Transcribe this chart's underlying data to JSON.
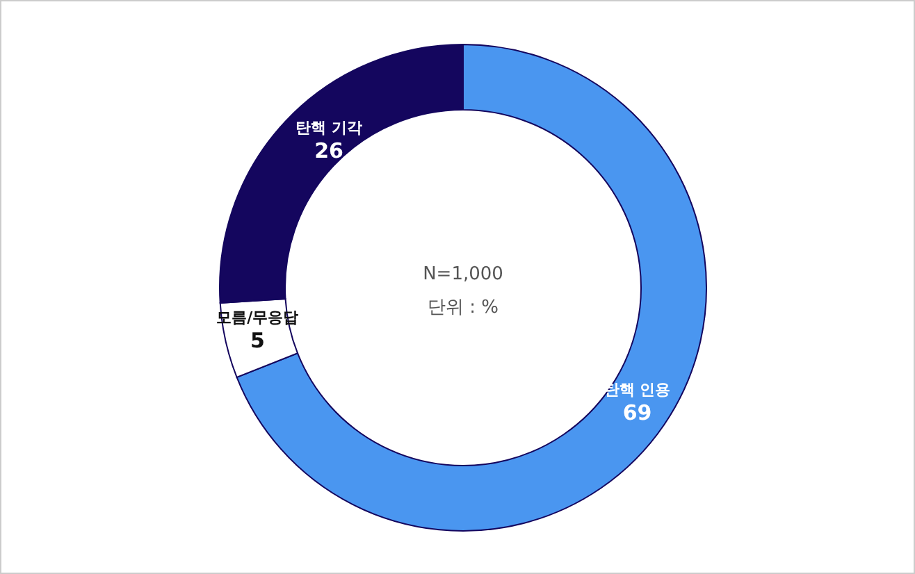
{
  "chart_data": {
    "type": "donut",
    "categories": [
      "탄핵 인용",
      "모름/무응답",
      "탄핵 기각"
    ],
    "values": [
      69,
      5,
      26
    ],
    "colors": [
      "#4a96f0",
      "#ffffff",
      "#14065e"
    ],
    "data_labels": true,
    "annotations": [
      "N=1,000",
      "단위 : %"
    ]
  }
}
